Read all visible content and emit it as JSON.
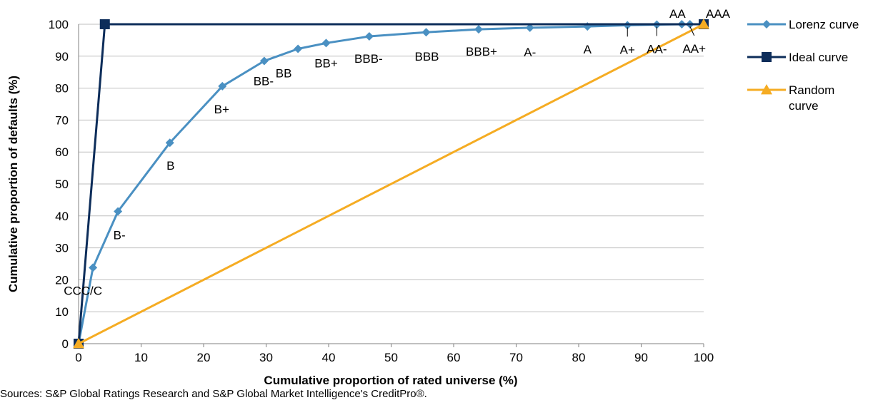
{
  "chart_data": {
    "type": "line",
    "xlabel": "Cumulative proportion of rated universe (%)",
    "ylabel": "Cumulative proportion of defaults (%)",
    "xlim": [
      0,
      100
    ],
    "ylim": [
      0,
      100
    ],
    "x_ticks": [
      0,
      10,
      20,
      30,
      40,
      50,
      60,
      70,
      80,
      90,
      100
    ],
    "y_ticks": [
      0,
      10,
      20,
      30,
      40,
      50,
      60,
      70,
      80,
      90,
      100
    ],
    "grid": "horizontal",
    "legend_position": "right",
    "series": [
      {
        "name": "Lorenz curve",
        "color": "#4a90c2",
        "marker": "diamond",
        "points": [
          {
            "x": 0,
            "y": 0,
            "label": ""
          },
          {
            "x": 2.3,
            "y": 23.8,
            "label": "CCC/C"
          },
          {
            "x": 6.3,
            "y": 41.4,
            "label": "B-"
          },
          {
            "x": 14.6,
            "y": 62.9,
            "label": "B"
          },
          {
            "x": 23,
            "y": 80.6,
            "label": "B+"
          },
          {
            "x": 29.7,
            "y": 88.5,
            "label": "BB-"
          },
          {
            "x": 35.1,
            "y": 92.3,
            "label": "BB"
          },
          {
            "x": 39.6,
            "y": 94.1,
            "label": "BB+"
          },
          {
            "x": 46.5,
            "y": 96.2,
            "label": "BBB-"
          },
          {
            "x": 55.6,
            "y": 97.5,
            "label": "BBB"
          },
          {
            "x": 64,
            "y": 98.4,
            "label": "BBB+"
          },
          {
            "x": 72.2,
            "y": 98.9,
            "label": "A-"
          },
          {
            "x": 81.4,
            "y": 99.3,
            "label": "A"
          },
          {
            "x": 87.8,
            "y": 99.7,
            "label": "A+"
          },
          {
            "x": 92.5,
            "y": 99.9,
            "label": "AA-"
          },
          {
            "x": 96.5,
            "y": 100,
            "label": "AA"
          },
          {
            "x": 97.8,
            "y": 100,
            "label": "AA+"
          },
          {
            "x": 100,
            "y": 100,
            "label": "AAA"
          }
        ]
      },
      {
        "name": "Ideal curve",
        "color": "#0d2d5a",
        "marker": "square",
        "points": [
          {
            "x": 0,
            "y": 0
          },
          {
            "x": 4.2,
            "y": 100
          },
          {
            "x": 100,
            "y": 100
          }
        ]
      },
      {
        "name": "Random curve",
        "color": "#f5ac23",
        "marker": "triangle",
        "points": [
          {
            "x": 0,
            "y": 0
          },
          {
            "x": 100,
            "y": 100
          }
        ]
      }
    ]
  },
  "legend": {
    "items": [
      {
        "lines": [
          "Lorenz curve"
        ]
      },
      {
        "lines": [
          "Ideal curve"
        ]
      },
      {
        "lines": [
          "Random",
          "curve"
        ]
      }
    ]
  },
  "source": "Sources: S&P Global Ratings Research and S&P Global Market Intelligence's CreditPro®."
}
